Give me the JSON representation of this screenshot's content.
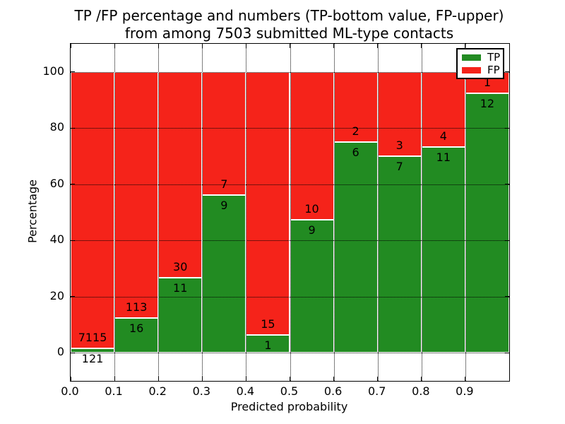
{
  "chart_data": {
    "type": "bar",
    "variant": "stacked-percentage",
    "title_lines": [
      "TP /FP percentage and numbers (TP-bottom value, FP-upper)",
      "from among 7503 submitted ML-type contacts"
    ],
    "xlabel": "Predicted probability",
    "ylabel": "Percentage",
    "total_submitted": 7503,
    "xlim": [
      0.0,
      1.0
    ],
    "ylim": [
      -10,
      110
    ],
    "bin_width": 0.1,
    "bins_start": [
      0.0,
      0.1,
      0.2,
      0.3,
      0.4,
      0.5,
      0.6,
      0.7,
      0.8,
      0.9
    ],
    "xtick_values": [
      0.0,
      0.1,
      0.2,
      0.3,
      0.4,
      0.5,
      0.6,
      0.7,
      0.8,
      0.9
    ],
    "xtick_labels": [
      "0.0",
      "0.1",
      "0.2",
      "0.3",
      "0.4",
      "0.5",
      "0.6",
      "0.7",
      "0.8",
      "0.9"
    ],
    "ytick_values": [
      0,
      20,
      40,
      60,
      80,
      100
    ],
    "ytick_labels": [
      "0",
      "20",
      "40",
      "60",
      "80",
      "100"
    ],
    "grid": {
      "show": true,
      "style": "dotted",
      "color": "#000000"
    },
    "legend": {
      "position": "upper right"
    },
    "series": [
      {
        "name": "TP",
        "color": "#228b22",
        "counts": [
          121,
          16,
          11,
          9,
          1,
          9,
          6,
          7,
          11,
          12
        ]
      },
      {
        "name": "FP",
        "color": "#f5231a",
        "counts": [
          7115,
          113,
          30,
          7,
          15,
          10,
          2,
          3,
          4,
          1
        ]
      }
    ],
    "tp_percent_of_bin": [
      1.67,
      12.4,
      26.83,
      56.25,
      6.25,
      47.37,
      75.0,
      70.0,
      73.33,
      92.31
    ],
    "bar_edge_color": "#ffffff",
    "text_color": "#000000"
  }
}
